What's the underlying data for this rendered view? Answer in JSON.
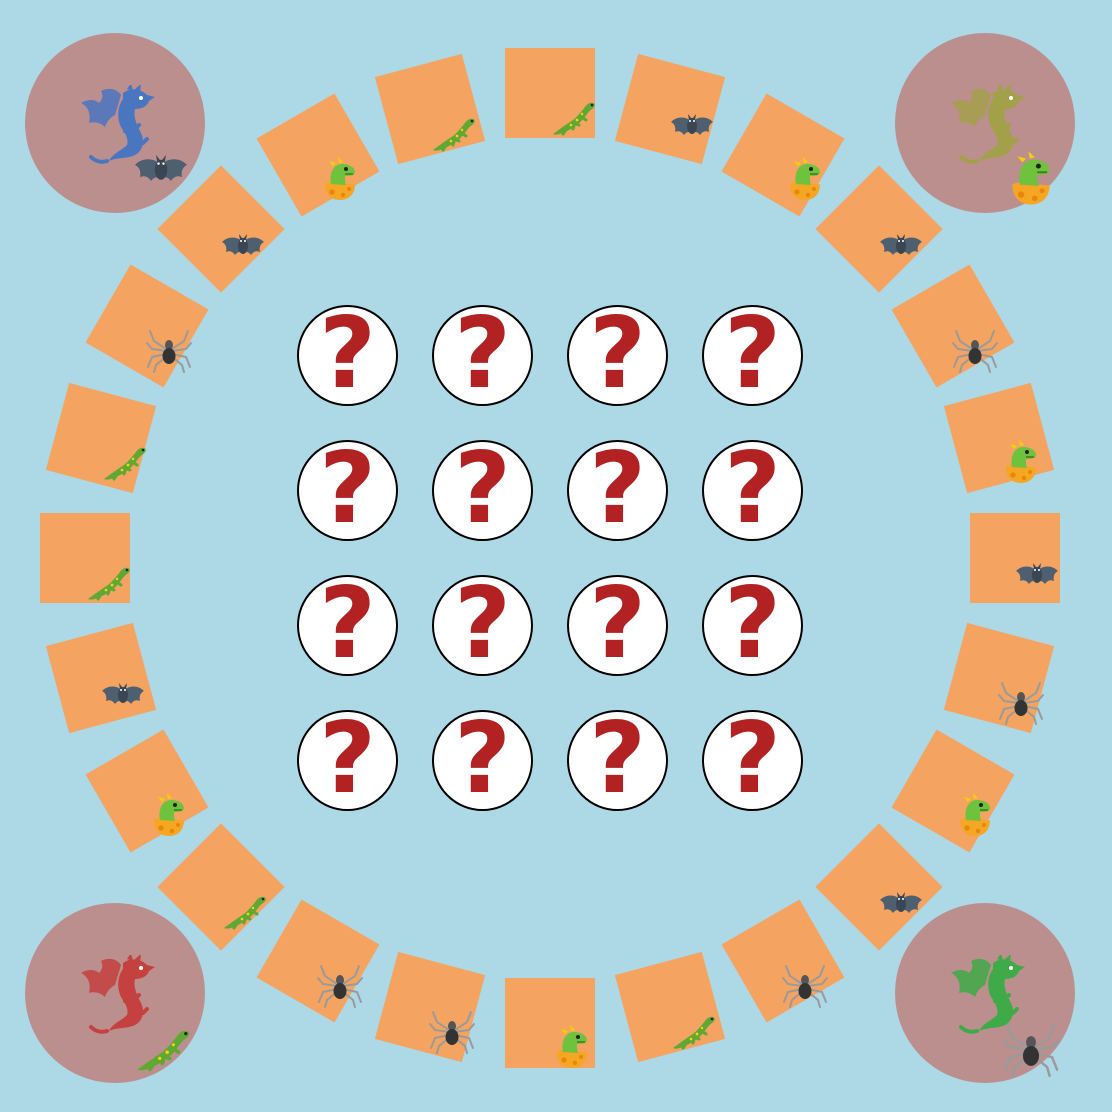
{
  "board": {
    "background": "#add8e6",
    "tile_color": "#f4a460",
    "cave_color": "#bc8f8f",
    "tiles": [
      {
        "creature": "lizard"
      },
      {
        "creature": "bat"
      },
      {
        "creature": "baby-dragon"
      },
      {
        "creature": "bat"
      },
      {
        "creature": "spider"
      },
      {
        "creature": "baby-dragon"
      },
      {
        "creature": "bat"
      },
      {
        "creature": "spider"
      },
      {
        "creature": "baby-dragon"
      },
      {
        "creature": "bat"
      },
      {
        "creature": "spider"
      },
      {
        "creature": "lizard"
      },
      {
        "creature": "baby-dragon"
      },
      {
        "creature": "spider"
      },
      {
        "creature": "spider"
      },
      {
        "creature": "lizard"
      },
      {
        "creature": "baby-dragon"
      },
      {
        "creature": "bat"
      },
      {
        "creature": "lizard"
      },
      {
        "creature": "lizard"
      },
      {
        "creature": "spider"
      },
      {
        "creature": "bat"
      },
      {
        "creature": "baby-dragon"
      },
      {
        "creature": "lizard"
      }
    ],
    "caves": [
      {
        "name": "top-left",
        "dragon_color": "#4a76c0",
        "creature": "bat"
      },
      {
        "name": "top-right",
        "dragon_color": "#a3a04a",
        "creature": "baby-dragon"
      },
      {
        "name": "bottom-right",
        "dragon_color": "#3faa48",
        "creature": "spider"
      },
      {
        "name": "bottom-left",
        "dragon_color": "#c4413f",
        "creature": "lizard"
      }
    ]
  },
  "cards": {
    "symbol": "?",
    "symbol_color": "#b22222",
    "count": 16
  },
  "icons": [
    "lizard-icon",
    "bat-icon",
    "baby-dragon-icon",
    "spider-icon",
    "dragon-icon"
  ]
}
